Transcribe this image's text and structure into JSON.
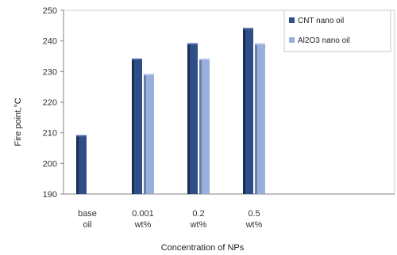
{
  "chart_data": {
    "type": "bar",
    "categories": [
      [
        "base",
        "oil"
      ],
      [
        "0.001",
        "wt%"
      ],
      [
        "0.2",
        "wt%"
      ],
      [
        "0.5",
        "wt%"
      ]
    ],
    "series": [
      {
        "name": "CNT nano oil",
        "values": [
          209,
          234,
          239,
          244
        ],
        "color": "#2d4e86"
      },
      {
        "name": "Al2O3 nano oil",
        "values": [
          null,
          229,
          234,
          239
        ],
        "color": "#98aedb"
      }
    ],
    "title": "",
    "xlabel": "Concentration of NPs",
    "ylabel": "Fire point,°C",
    "ylim": [
      190,
      250
    ],
    "yticks": [
      190,
      200,
      210,
      220,
      230,
      240,
      250
    ],
    "grid": false,
    "legend_position": "top-right"
  }
}
